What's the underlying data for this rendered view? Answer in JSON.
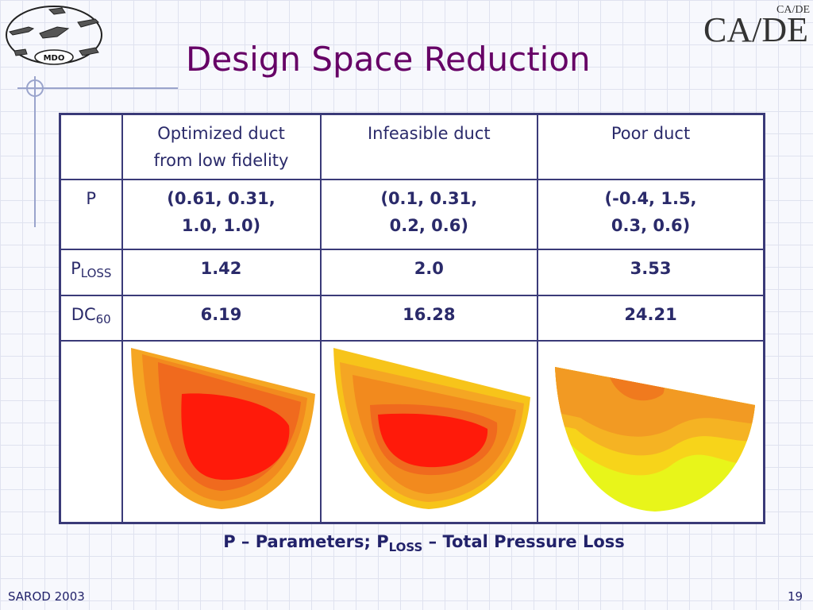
{
  "slide": {
    "title": "Design Space Reduction",
    "footer_left": "SAROD 2003",
    "page_number": "19",
    "logo_left_text": "MDO",
    "logo_right_text": "CA/DE",
    "logo_right_small": "CA/DE",
    "accent_color": "#660066",
    "text_color": "#2a2a6a"
  },
  "table": {
    "columns": [
      {
        "line1": "Optimized duct",
        "line2": "from low fidelity"
      },
      {
        "line1": "Infeasible duct",
        "line2": ""
      },
      {
        "line1": "Poor duct",
        "line2": ""
      }
    ],
    "rows": {
      "p": {
        "label": "P",
        "cells": [
          [
            "(0.61, 0.31,",
            "1.0, 1.0)"
          ],
          [
            "(0.1, 0.31,",
            "0.2, 0.6)"
          ],
          [
            "(-0.4, 1.5,",
            "0.3, 0.6)"
          ]
        ]
      },
      "ploss": {
        "label_main": "P",
        "label_sub": "LOSS",
        "cells": [
          "1.42",
          "2.0",
          "3.53"
        ]
      },
      "dc60": {
        "label_main": "DC",
        "label_sub": "60",
        "cells": [
          "6.19",
          "16.28",
          "24.21"
        ]
      }
    },
    "contour_plots": [
      "optimized-duct-contour",
      "infeasible-duct-contour",
      "poor-duct-contour"
    ]
  },
  "caption": {
    "part1": "P – Parameters;  P",
    "sub": "LOSS",
    "part2": " – Total Pressure Loss"
  }
}
